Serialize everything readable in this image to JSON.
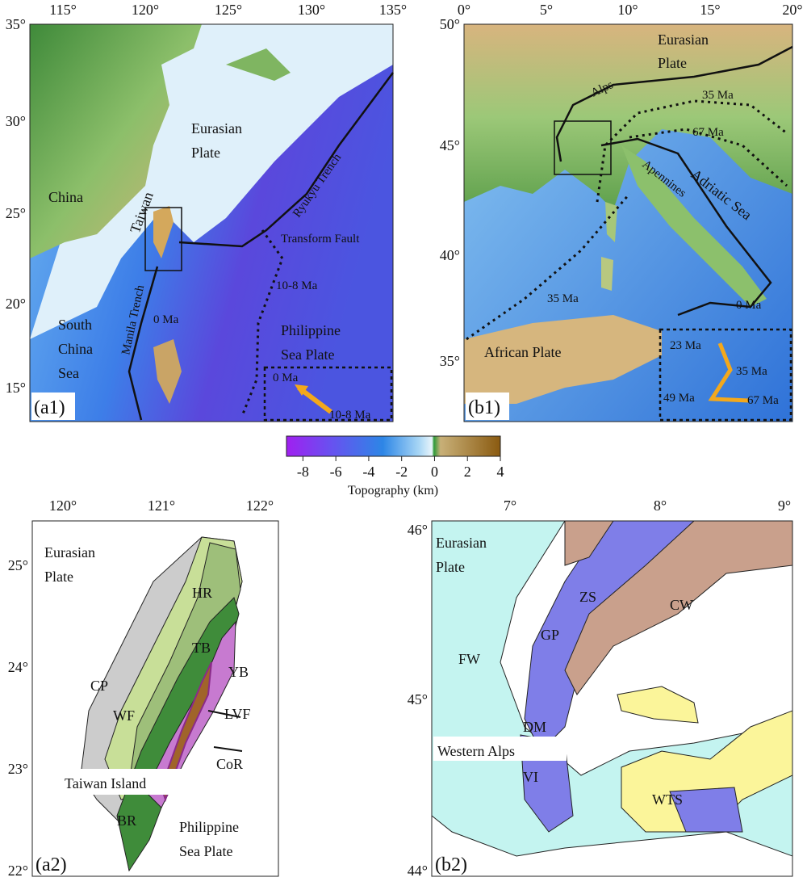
{
  "a1": {
    "xticks": [
      "115°",
      "120°",
      "125°",
      "130°",
      "135°"
    ],
    "yticks": [
      "35°",
      "30°",
      "25°",
      "20°",
      "15°"
    ],
    "labels": {
      "china": "China",
      "eurasian_plate": [
        "Eurasian",
        "Plate"
      ],
      "taiwan": "Taiwan",
      "ryukyu_trench": "Ryukyu Trench",
      "transform_fault": "Transform Fault",
      "age_10_8": "10-8 Ma",
      "age_0": "0 Ma",
      "manila_trench": "Manila Trench",
      "south_china_sea": [
        "South",
        "China",
        "Sea"
      ],
      "philippine_sea_plate": [
        "Philippine",
        "Sea Plate"
      ],
      "inset_0": "0 Ma",
      "inset_10_8": "10-8 Ma"
    },
    "panel": "(a1)"
  },
  "b1": {
    "xticks": [
      "0°",
      "5°",
      "10°",
      "15°",
      "20°"
    ],
    "yticks": [
      "50°",
      "45°",
      "40°",
      "35°"
    ],
    "labels": {
      "eurasian_plate": [
        "Eurasian",
        "Plate"
      ],
      "alps": "Alps",
      "age_35_north": "35 Ma",
      "age_67": "67 Ma",
      "apennines": "Apennines",
      "adriatic_sea": "Adriatic Sea",
      "age_35_west": "35 Ma",
      "age_0": "0 Ma",
      "african_plate": "African Plate",
      "inset_23": "23 Ma",
      "inset_35": "35 Ma",
      "inset_49": "49 Ma",
      "inset_67": "67 Ma"
    },
    "panel": "(b1)"
  },
  "colorbar": {
    "title": "Topography (km)",
    "lim": [
      -9,
      4
    ],
    "ticks": [
      -8,
      -6,
      -4,
      -2,
      0,
      2,
      4
    ]
  },
  "a2": {
    "xticks": [
      "120°",
      "121°",
      "122°"
    ],
    "yticks": [
      "25°",
      "24°",
      "23°",
      "22°"
    ],
    "labels": {
      "eurasian_plate": [
        "Eurasian",
        "Plate"
      ],
      "hr": "HR",
      "tb": "TB",
      "cp": "CP",
      "yb": "YB",
      "lvf": "LVF",
      "wf": "WF",
      "cor": "CoR",
      "taiwan_island": "Taiwan Island",
      "br": "BR",
      "philippine_sea_plate": [
        "Philippine",
        "Sea Plate"
      ]
    },
    "panel": "(a2)"
  },
  "b2": {
    "xticks": [
      "7°",
      "8°",
      "9°"
    ],
    "yticks": [
      "46°",
      "45°",
      "44°"
    ],
    "labels": {
      "eurasian_plate": [
        "Eurasian",
        "Plate"
      ],
      "zs": "ZS",
      "cw": "CW",
      "gp": "GP",
      "fw": "FW",
      "dm": "DM",
      "western_alps": "Western Alps",
      "vi": "VI",
      "wts": "WTS"
    },
    "panel": "(b2)"
  }
}
